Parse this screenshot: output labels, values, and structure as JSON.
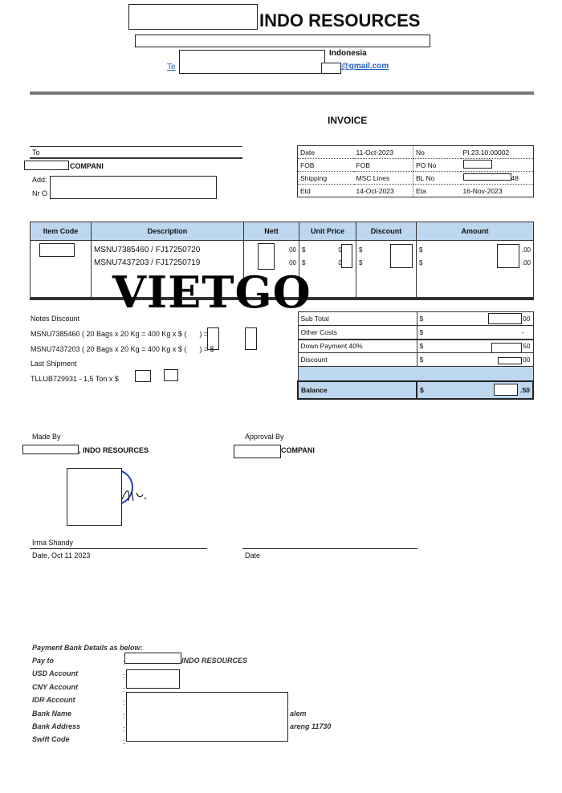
{
  "header": {
    "company": "INDO RESOURCES",
    "country": "Indonesia",
    "tel_prefix": "Te",
    "email_suffix": "@gmail.com"
  },
  "title": "INVOICE",
  "to": {
    "label": "To",
    "company": "COMPANI",
    "add_label": "Add:",
    "nr_label": "Nr O"
  },
  "info": [
    {
      "k1": "Date",
      "v1": "11-Oct-2023",
      "k2": "No",
      "v2": "PI.23.10.00002"
    },
    {
      "k1": "FOB",
      "v1": "FOB",
      "k2": "PO No",
      "v2": ""
    },
    {
      "k1": "Shipping",
      "v1": "MSC Lines",
      "k2": "BL No",
      "v2": "48"
    },
    {
      "k1": "Etd",
      "v1": "14-Oct-2023",
      "k2": "Eta",
      "v2": "16-Nov-2023"
    }
  ],
  "items": {
    "headers": [
      "Item Code",
      "Description",
      "Nett",
      "Unit Price",
      "Discount",
      "Amount"
    ],
    "rows": [
      {
        "desc": "MSNU7385460 / FJ17250720",
        "nett": "00",
        "cur": "$",
        "unit": "0,",
        "dcur": "$",
        "acur": "$",
        "amount": ".00"
      },
      {
        "desc": "MSNU7437203 / FJ17250719",
        "nett": "00",
        "cur": "$",
        "unit": "0,",
        "dcur": "$",
        "acur": "$",
        "amount": ".00"
      }
    ]
  },
  "watermark": "VIETGO",
  "notes": {
    "title": "Notes Discount",
    "line1": "MSNU7385460 ( 20 Bags x 20 Kg = 400 Kg x $ (",
    "line1_end": ") = $",
    "line2": "MSNU7437203 ( 20 Bags x 20 Kg = 400 Kg x $ (",
    "line2_end": ") = $",
    "last_title": "Last Shipment",
    "last_line": "TLLUB729931 - 1,5 Ton x $",
    "last_end": "$"
  },
  "summary": [
    {
      "label": "Sub Total",
      "cur": "$",
      "value": "00"
    },
    {
      "label": "Other Costs",
      "cur": "$",
      "value": "-"
    },
    {
      "label": "Down Payment 40%",
      "cur": "$",
      "value": "50"
    },
    {
      "label": "Discount",
      "cur": "$",
      "value": "00"
    },
    {
      "label": "Balance",
      "cur": "$",
      "value": ".50"
    }
  ],
  "signatures": {
    "made_by": "Made By",
    "made_company": ", INDO RESOURCES",
    "approval_by": "Approval By",
    "approval_company": "COMPANI",
    "signer": "Irma Shandy",
    "date_left": "Date, Oct 11 2023",
    "date_right": "Date"
  },
  "payment": {
    "title": "Payment Bank Details as below:",
    "rows": [
      {
        "label": "Pay to",
        "value": "INDO RESOURCES"
      },
      {
        "label": "USD Account",
        "value": ""
      },
      {
        "label": "CNY Account",
        "value": ""
      },
      {
        "label": "IDR Account",
        "value": ""
      },
      {
        "label": "Bank Name",
        "value": "alem"
      },
      {
        "label": "Bank Address",
        "value": "areng 11730"
      },
      {
        "label": "Swift Code",
        "value": ""
      }
    ]
  },
  "colors": {
    "header_fill": "#bdd7ee",
    "link": "#1f5fc4",
    "stamp": "#2a3fc0"
  }
}
